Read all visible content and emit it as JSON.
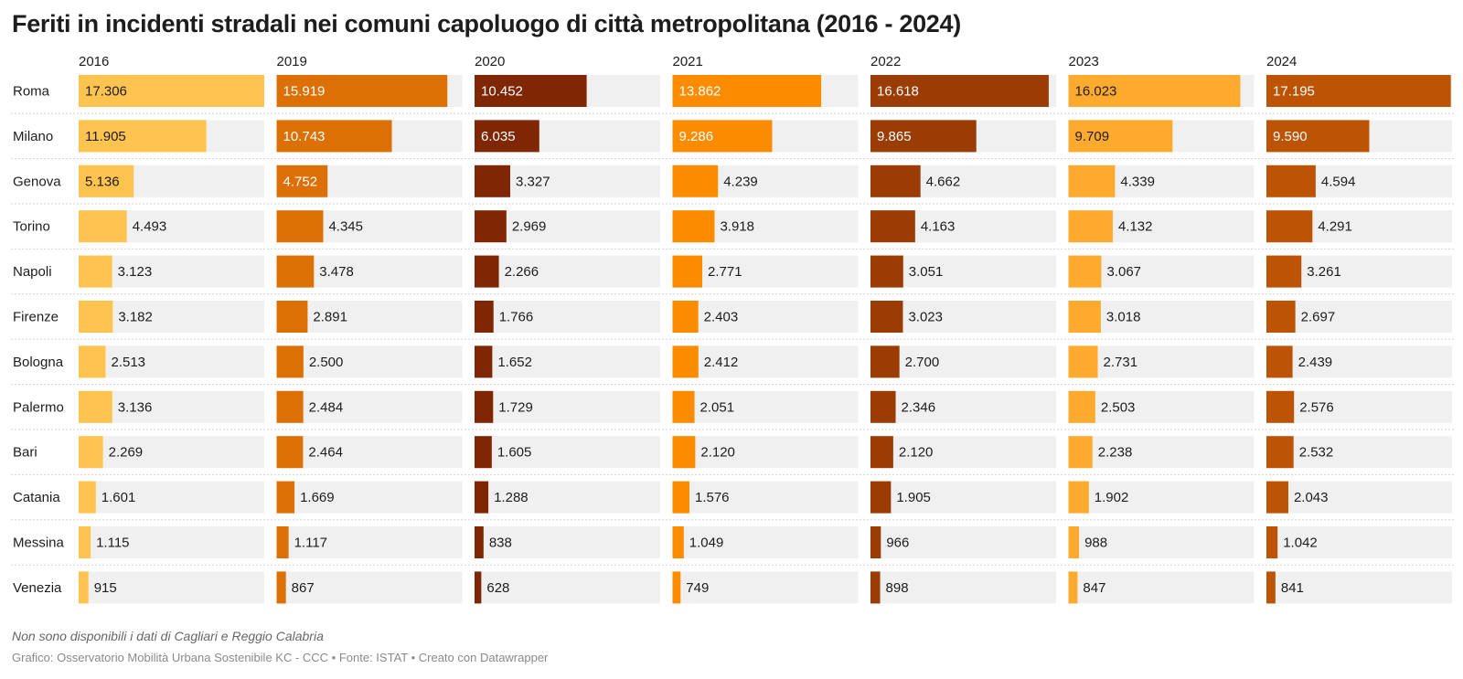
{
  "title": "Feriti in incidenti stradali nei comuni capoluogo di città metropolitana (2016 - 2024)",
  "note": "Non sono disponibili i dati di Cagliari e Reggio Calabria",
  "source": "Grafico: Osservatorio Mobilità Urbana Sostenibile KC - CCC • Fonte: ISTAT • Creato con Datawrapper",
  "chart_data": {
    "type": "bar",
    "orientation": "horizontal",
    "layout": "small-multiples",
    "categories": [
      "Roma",
      "Milano",
      "Genova",
      "Torino",
      "Napoli",
      "Firenze",
      "Bologna",
      "Palermo",
      "Bari",
      "Catania",
      "Messina",
      "Venezia"
    ],
    "xlim": [
      0,
      17306
    ],
    "series": [
      {
        "name": "2016",
        "color": "#fec44f",
        "values": [
          17306,
          11905,
          5136,
          4493,
          3123,
          3182,
          2513,
          3136,
          2269,
          1601,
          1115,
          915
        ],
        "labels": [
          "17.306",
          "11.905",
          "5.136",
          "4.493",
          "3.123",
          "3.182",
          "2.513",
          "3.136",
          "2.269",
          "1.601",
          "1.115",
          "915"
        ]
      },
      {
        "name": "2019",
        "color": "#dd7005",
        "values": [
          15919,
          10743,
          4752,
          4345,
          3478,
          2891,
          2500,
          2484,
          2464,
          1669,
          1117,
          867
        ],
        "labels": [
          "15.919",
          "10.743",
          "4.752",
          "4.345",
          "3.478",
          "2.891",
          "2.500",
          "2.484",
          "2.464",
          "1.669",
          "1.117",
          "867"
        ]
      },
      {
        "name": "2020",
        "color": "#7f2704",
        "values": [
          10452,
          6035,
          3327,
          2969,
          2266,
          1766,
          1652,
          1729,
          1605,
          1288,
          838,
          628
        ],
        "labels": [
          "10.452",
          "6.035",
          "3.327",
          "2.969",
          "2.266",
          "1.766",
          "1.652",
          "1.729",
          "1.605",
          "1.288",
          "838",
          "628"
        ]
      },
      {
        "name": "2021",
        "color": "#fb8c00",
        "values": [
          13862,
          9286,
          4239,
          3918,
          2771,
          2403,
          2412,
          2051,
          2120,
          1576,
          1049,
          749
        ],
        "labels": [
          "13.862",
          "9.286",
          "4.239",
          "3.918",
          "2.771",
          "2.403",
          "2.412",
          "2.051",
          "2.120",
          "1.576",
          "1.049",
          "749"
        ]
      },
      {
        "name": "2022",
        "color": "#9a3c03",
        "values": [
          16618,
          9865,
          4662,
          4163,
          3051,
          3023,
          2700,
          2346,
          2120,
          1905,
          966,
          898
        ],
        "labels": [
          "16.618",
          "9.865",
          "4.662",
          "4.163",
          "3.051",
          "3.023",
          "2.700",
          "2.346",
          "2.120",
          "1.905",
          "966",
          "898"
        ]
      },
      {
        "name": "2023",
        "color": "#fdaa2f",
        "values": [
          16023,
          9709,
          4339,
          4132,
          3067,
          3018,
          2731,
          2503,
          2238,
          1902,
          988,
          847
        ],
        "labels": [
          "16.023",
          "9.709",
          "4.339",
          "4.132",
          "3.067",
          "3.018",
          "2.731",
          "2.503",
          "2.238",
          "1.902",
          "988",
          "847"
        ]
      },
      {
        "name": "2024",
        "color": "#bd5405",
        "values": [
          17195,
          9590,
          4594,
          4291,
          3261,
          2697,
          2439,
          2576,
          2532,
          2043,
          1042,
          841
        ],
        "labels": [
          "17.195",
          "9.590",
          "4.594",
          "4.291",
          "3.261",
          "2.697",
          "2.439",
          "2.576",
          "2.532",
          "2.043",
          "1.042",
          "841"
        ]
      }
    ]
  }
}
